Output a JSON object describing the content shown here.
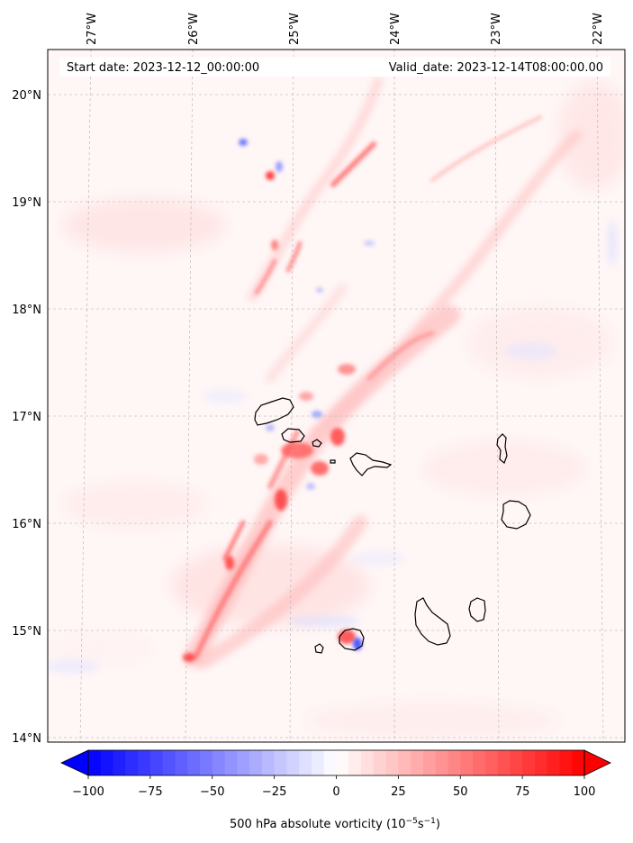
{
  "map": {
    "start_date": "Start date: 2023-12-12_00:00:00",
    "valid_date": "Valid_date: 2023-12-14T08:00:00.00",
    "lon_labels": [
      "27°W",
      "26°W",
      "25°W",
      "24°W",
      "23°W",
      "22°W"
    ],
    "lat_labels": [
      "20°N",
      "19°N",
      "18°N",
      "17°N",
      "16°N",
      "15°N",
      "14°N"
    ],
    "gridlines": true,
    "islands": [
      "Santo Antão",
      "São Vicente",
      "Santa Luzia",
      "Ilhéu Raso",
      "São Nicolau",
      "Sal",
      "Boa Vista",
      "Maio",
      "Santiago",
      "Fogo",
      "Brava"
    ]
  },
  "colorbar": {
    "ticks": [
      "−100",
      "−75",
      "−50",
      "−25",
      "0",
      "25",
      "50",
      "75",
      "100"
    ],
    "label": "500 hPa absolute vorticity (10",
    "label_exp1": "−5",
    "label_mid": "s",
    "label_exp2": "−1",
    "label_end": ")",
    "min": -100,
    "max": 100,
    "extend": "both",
    "colormap": "bwr",
    "color_neg": "#0000ff",
    "color_zero": "#ffffff",
    "color_pos": "#ff0000"
  }
}
